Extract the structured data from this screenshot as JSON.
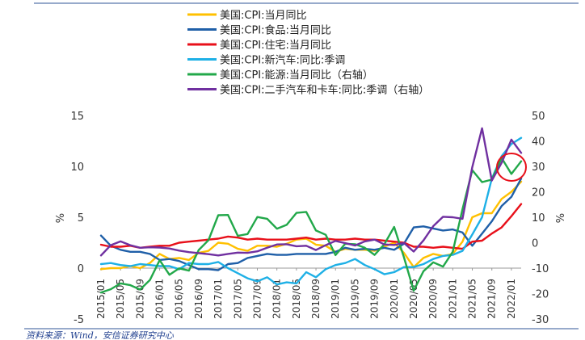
{
  "chart_data": {
    "type": "line",
    "x": [
      "2015/01",
      "2015/03",
      "2015/05",
      "2015/07",
      "2015/09",
      "2015/11",
      "2016/01",
      "2016/03",
      "2016/05",
      "2016/07",
      "2016/09",
      "2016/11",
      "2017/01",
      "2017/03",
      "2017/05",
      "2017/07",
      "2017/09",
      "2017/11",
      "2018/01",
      "2018/03",
      "2018/05",
      "2018/07",
      "2018/09",
      "2018/11",
      "2019/01",
      "2019/03",
      "2019/05",
      "2019/07",
      "2019/09",
      "2019/11",
      "2020/01",
      "2020/03",
      "2020/05",
      "2020/07",
      "2020/09",
      "2020/11",
      "2021/01",
      "2021/03",
      "2021/05",
      "2021/07",
      "2021/09",
      "2021/11",
      "2022/01",
      "2022/03"
    ],
    "x_tick_labels": [
      "2015/01",
      "2015/05",
      "2015/09",
      "2016/01",
      "2016/05",
      "2016/09",
      "2017/01",
      "2017/05",
      "2017/09",
      "2018/01",
      "2018/05",
      "2018/09",
      "2019/01",
      "2019/05",
      "2019/09",
      "2020/01",
      "2020/05",
      "2020/09",
      "2021/01",
      "2021/05",
      "2021/09",
      "2022/01"
    ],
    "y_left": {
      "label": "%",
      "ticks": [
        15,
        10,
        5,
        0,
        -5
      ],
      "ylim": [
        -5,
        15
      ]
    },
    "y_right": {
      "label": "%",
      "ticks": [
        50,
        40,
        30,
        20,
        10,
        0,
        -10,
        -20,
        -30
      ],
      "ylim": [
        -30,
        50
      ]
    },
    "series": [
      {
        "name": "美国:CPI:当月同比",
        "color": "#FFC000",
        "axis": "left",
        "values": [
          -0.1,
          0.0,
          0.0,
          0.2,
          0.0,
          0.5,
          1.4,
          0.9,
          1.0,
          0.8,
          1.5,
          1.7,
          2.5,
          2.4,
          1.9,
          1.7,
          2.2,
          2.2,
          2.1,
          2.4,
          2.8,
          2.9,
          2.3,
          2.2,
          1.6,
          1.9,
          1.8,
          1.8,
          1.7,
          2.1,
          2.5,
          1.5,
          0.1,
          1.0,
          1.4,
          1.2,
          1.4,
          2.6,
          5.0,
          5.4,
          5.4,
          6.8,
          7.5,
          8.5
        ]
      },
      {
        "name": "美国:CPI:食品:当月同比",
        "color": "#1F5FA8",
        "axis": "left",
        "values": [
          3.2,
          2.2,
          1.8,
          1.6,
          1.6,
          1.4,
          0.8,
          0.9,
          0.7,
          0.3,
          -0.1,
          -0.1,
          -0.2,
          0.4,
          0.5,
          1.0,
          1.2,
          1.4,
          1.3,
          1.3,
          1.4,
          1.4,
          1.4,
          1.4,
          1.6,
          2.0,
          1.8,
          1.9,
          1.8,
          2.0,
          1.8,
          2.4,
          4.0,
          4.1,
          3.9,
          3.7,
          3.8,
          3.5,
          2.2,
          3.4,
          4.6,
          6.1,
          7.0,
          8.8
        ]
      },
      {
        "name": "美国:CPI:住宅:当月同比",
        "color": "#E8101A",
        "axis": "left",
        "values": [
          2.3,
          2.1,
          2.1,
          2.2,
          2.0,
          2.1,
          2.2,
          2.2,
          2.5,
          2.6,
          2.7,
          2.8,
          2.9,
          3.1,
          3.0,
          2.8,
          2.9,
          2.8,
          2.8,
          2.8,
          2.9,
          3.0,
          2.8,
          2.9,
          2.8,
          2.8,
          2.9,
          2.8,
          2.8,
          2.7,
          2.6,
          2.5,
          2.1,
          2.1,
          2.0,
          2.1,
          2.0,
          1.9,
          2.6,
          2.7,
          3.4,
          4.0,
          5.1,
          6.3
        ]
      },
      {
        "name": "美国:CPI:新汽车:同比:季调",
        "color": "#1EB0E6",
        "axis": "left",
        "values": [
          0.4,
          0.5,
          0.3,
          0.2,
          0.4,
          0.3,
          0.2,
          0.2,
          -0.1,
          0.5,
          0.4,
          0.4,
          0.6,
          0.0,
          -0.5,
          -1.0,
          -1.3,
          -0.9,
          -1.6,
          -1.4,
          -1.5,
          -0.4,
          -0.9,
          -0.1,
          0.3,
          0.5,
          0.9,
          0.3,
          -0.1,
          -0.6,
          -0.4,
          0.1,
          0.1,
          0.4,
          0.9,
          1.2,
          1.3,
          1.7,
          3.3,
          5.0,
          8.8,
          11.0,
          12.2,
          12.8
        ]
      },
      {
        "name": "美国:CPI:能源:当月同比（右轴）",
        "color": "#22A84A",
        "axis": "right",
        "values": [
          -19.6,
          -18.3,
          -16.0,
          -16.7,
          -18.4,
          -14.7,
          -6.9,
          -12.6,
          -10.1,
          -11.0,
          -2.9,
          1.0,
          10.8,
          10.9,
          2.7,
          3.4,
          10.1,
          9.4,
          5.5,
          7.0,
          11.7,
          12.1,
          4.8,
          3.1,
          -4.9,
          -0.4,
          -0.6,
          -2.0,
          -4.8,
          -0.6,
          6.2,
          -5.7,
          -18.9,
          -11.2,
          -7.7,
          -9.4,
          -3.6,
          13.2,
          28.5,
          23.8,
          24.8,
          33.3,
          27.0,
          32.0
        ]
      },
      {
        "name": "美国:CPI:二手汽车和卡车:同比:季调（右轴）",
        "color": "#7030A0",
        "axis": "right",
        "values": [
          -5.0,
          -1.0,
          0.5,
          -1.0,
          -2.0,
          -1.8,
          -1.9,
          -2.3,
          -3.1,
          -3.7,
          -4.1,
          -4.5,
          -5.0,
          -4.4,
          -3.9,
          -4.0,
          -3.4,
          -2.0,
          -0.7,
          -0.6,
          -1.4,
          -1.2,
          -2.9,
          -1.0,
          0.7,
          -0.2,
          -1.1,
          0.5,
          1.2,
          -0.7,
          -0.9,
          -0.1,
          -3.5,
          0.9,
          6.5,
          10.2,
          10.0,
          9.4,
          29.7,
          45.0,
          24.4,
          31.4,
          40.5,
          35.3
        ]
      }
    ],
    "source": "资料来源：Wind，安信证券研究中心"
  }
}
